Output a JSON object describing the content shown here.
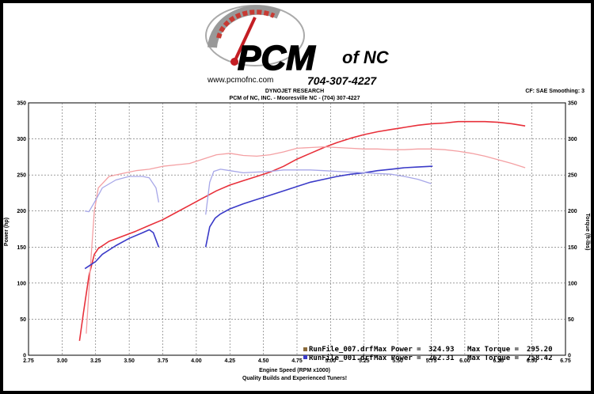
{
  "logo": {
    "brand": "PCM",
    "suffix": "of NC",
    "website": "www.pcmofnc.com",
    "phone": "704-307-4227"
  },
  "header": {
    "title": "DYNOJET RESEARCH",
    "subtitle": "PCM of NC, INC. - Mooresville NC - (704) 307-4227",
    "correction": "CF: SAE  Smoothing: 3"
  },
  "footer": {
    "tagline": "Quality Builds and Experienced Tuners!"
  },
  "colors": {
    "run007_power": "#e8303a",
    "run007_torque": "#f4a0a3",
    "run001_power": "#3a3ac8",
    "run001_torque": "#a7a7e8",
    "run007_marker": "#8a6a3a",
    "run001_marker": "#3a3ac8"
  },
  "chart_data": {
    "type": "line",
    "xlabel": "Engine Speed (RPM x1000)",
    "ylabel": "Power (hp)",
    "y2label": "Torque (ft-lbs)",
    "xlim": [
      2.75,
      6.75
    ],
    "ylim": [
      0,
      350
    ],
    "y2lim": [
      0,
      350
    ],
    "grid": true,
    "x_ticks": [
      "2.75",
      "3.00",
      "3.25",
      "3.50",
      "3.75",
      "4.00",
      "4.25",
      "4.50",
      "4.75",
      "5.00",
      "5.25",
      "5.50",
      "5.75",
      "6.00",
      "6.25",
      "6.50",
      "6.75"
    ],
    "y_ticks": [
      "0",
      "50",
      "100",
      "150",
      "200",
      "250",
      "300",
      "350"
    ],
    "y2_ticks": [
      "0",
      "50",
      "100",
      "150",
      "200",
      "250",
      "300",
      "350"
    ],
    "legend": [
      {
        "file": "RunFile_007.drf",
        "max_power_label": "Max Power =",
        "max_power": "324.93",
        "max_torque_label": "Max Torque =",
        "max_torque": "295.20"
      },
      {
        "file": "RunFile_001.drf",
        "max_power_label": "Max Power =",
        "max_power": "262.31",
        "max_torque_label": "Max Torque =",
        "max_torque": "258.42"
      }
    ],
    "series": [
      {
        "id": "run007_power",
        "x": [
          3.13,
          3.16,
          3.2,
          3.24,
          3.27,
          3.35,
          3.45,
          3.55,
          3.65,
          3.75,
          3.85,
          3.95,
          4.05,
          4.15,
          4.25,
          4.35,
          4.45,
          4.55,
          4.65,
          4.75,
          4.85,
          4.95,
          5.05,
          5.15,
          5.25,
          5.35,
          5.45,
          5.55,
          5.65,
          5.75,
          5.85,
          5.95,
          6.05,
          6.15,
          6.25,
          6.35,
          6.45
        ],
        "y": [
          20,
          60,
          110,
          140,
          148,
          158,
          165,
          172,
          180,
          188,
          198,
          208,
          218,
          228,
          236,
          242,
          248,
          254,
          262,
          272,
          280,
          288,
          295,
          301,
          306,
          310,
          313,
          316,
          319,
          321,
          322,
          324,
          324,
          324,
          323,
          321,
          318
        ]
      },
      {
        "id": "run007_torque",
        "x": [
          3.18,
          3.21,
          3.24,
          3.27,
          3.35,
          3.45,
          3.55,
          3.65,
          3.75,
          3.85,
          3.95,
          4.05,
          4.15,
          4.25,
          4.35,
          4.45,
          4.55,
          4.65,
          4.75,
          4.85,
          4.95,
          5.05,
          5.15,
          5.25,
          5.35,
          5.45,
          5.55,
          5.65,
          5.75,
          5.85,
          5.95,
          6.05,
          6.15,
          6.25,
          6.35,
          6.45
        ],
        "y": [
          30,
          120,
          200,
          232,
          248,
          252,
          256,
          258,
          262,
          264,
          266,
          272,
          278,
          280,
          277,
          276,
          278,
          282,
          287,
          288,
          289,
          288,
          287,
          286,
          286,
          285,
          285,
          286,
          286,
          285,
          283,
          280,
          276,
          271,
          266,
          260
        ]
      },
      {
        "id": "run001_power",
        "x": [
          3.17,
          3.21,
          3.25,
          3.3,
          3.4,
          3.5,
          3.6,
          3.65,
          3.68,
          3.7,
          3.72
        ],
        "y": [
          120,
          125,
          130,
          140,
          152,
          162,
          170,
          174,
          170,
          160,
          150
        ]
      },
      {
        "id": "run001_power_b",
        "x": [
          4.07,
          4.1,
          4.14,
          4.18,
          4.25,
          4.35,
          4.45,
          4.55,
          4.65,
          4.75,
          4.85,
          4.95,
          5.05,
          5.15,
          5.25,
          5.35,
          5.45,
          5.55,
          5.65,
          5.75,
          5.76
        ],
        "y": [
          150,
          178,
          190,
          196,
          203,
          210,
          216,
          222,
          228,
          234,
          240,
          244,
          248,
          251,
          253,
          256,
          258,
          260,
          261,
          262,
          262
        ]
      },
      {
        "id": "run001_torque",
        "x": [
          3.17,
          3.2,
          3.25,
          3.3,
          3.4,
          3.5,
          3.6,
          3.65,
          3.7,
          3.72
        ],
        "y": [
          200,
          199,
          215,
          232,
          243,
          248,
          248,
          246,
          232,
          212
        ]
      },
      {
        "id": "run001_torque_b",
        "x": [
          4.07,
          4.1,
          4.13,
          4.18,
          4.25,
          4.35,
          4.45,
          4.55,
          4.65,
          4.75,
          4.85,
          4.95,
          5.05,
          5.15,
          5.25,
          5.35,
          5.45,
          5.55,
          5.65,
          5.75
        ],
        "y": [
          195,
          240,
          255,
          258,
          256,
          253,
          254,
          255,
          257,
          257,
          257,
          256,
          255,
          254,
          253,
          252,
          251,
          248,
          244,
          238
        ]
      }
    ]
  }
}
